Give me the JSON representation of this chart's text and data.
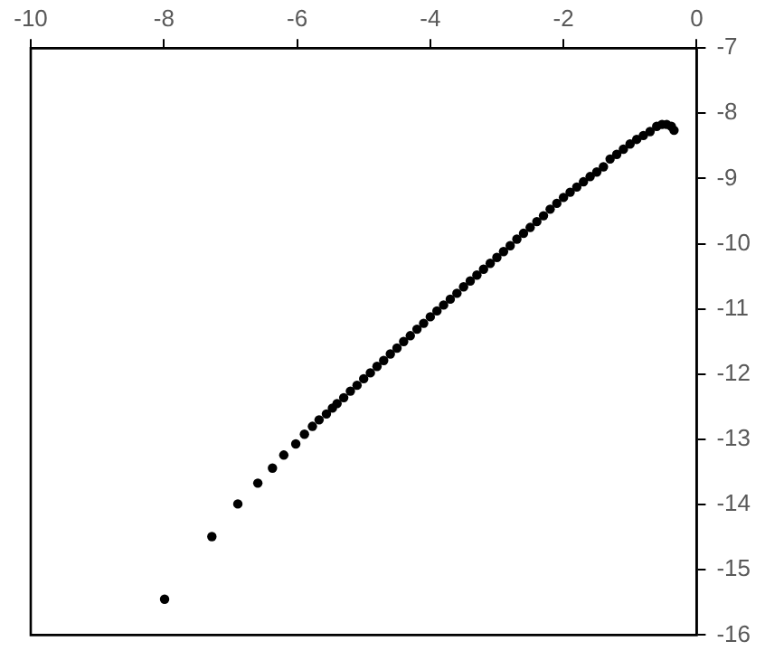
{
  "chart_data": {
    "type": "scatter",
    "xlim": [
      -10,
      0
    ],
    "xticks": [
      -10,
      -8,
      -6,
      -4,
      -2,
      0
    ],
    "ylim": [
      -16,
      -7
    ],
    "yticks": [
      -16,
      -15,
      -14,
      -13,
      -12,
      -11,
      -10,
      -9,
      -8,
      -7
    ],
    "grid": false,
    "legend": false,
    "marker": "circle",
    "series": [
      {
        "color": "#000000",
        "x": [
          -7.99,
          -7.28,
          -6.89,
          -6.59,
          -6.37,
          -6.2,
          -6.02,
          -5.89,
          -5.77,
          -5.67,
          -5.56,
          -5.47,
          -5.4,
          -5.3,
          -5.2,
          -5.1,
          -5.0,
          -4.9,
          -4.8,
          -4.7,
          -4.6,
          -4.5,
          -4.4,
          -4.3,
          -4.2,
          -4.1,
          -4.0,
          -3.9,
          -3.8,
          -3.7,
          -3.6,
          -3.5,
          -3.4,
          -3.3,
          -3.2,
          -3.1,
          -3.0,
          -2.9,
          -2.8,
          -2.7,
          -2.6,
          -2.5,
          -2.4,
          -2.3,
          -2.2,
          -2.1,
          -2.0,
          -1.9,
          -1.8,
          -1.7,
          -1.6,
          -1.5,
          -1.4,
          -1.3,
          -1.2,
          -1.1,
          -1.0,
          -0.9,
          -0.8,
          -0.7,
          -0.6,
          -0.52,
          -0.45,
          -0.38,
          -0.34
        ],
        "values": [
          -15.45,
          -14.49,
          -13.99,
          -13.67,
          -13.44,
          -13.24,
          -13.07,
          -12.92,
          -12.8,
          -12.7,
          -12.61,
          -12.52,
          -12.45,
          -12.36,
          -12.26,
          -12.17,
          -12.07,
          -11.98,
          -11.88,
          -11.79,
          -11.69,
          -11.6,
          -11.5,
          -11.41,
          -11.31,
          -11.22,
          -11.12,
          -11.03,
          -10.94,
          -10.85,
          -10.76,
          -10.66,
          -10.57,
          -10.48,
          -10.39,
          -10.3,
          -10.21,
          -10.12,
          -10.03,
          -9.93,
          -9.84,
          -9.75,
          -9.66,
          -9.57,
          -9.47,
          -9.38,
          -9.29,
          -9.21,
          -9.13,
          -9.05,
          -8.97,
          -8.9,
          -8.82,
          -8.7,
          -8.63,
          -8.55,
          -8.47,
          -8.4,
          -8.34,
          -8.28,
          -8.2,
          -8.17,
          -8.17,
          -8.2,
          -8.26
        ]
      }
    ]
  }
}
